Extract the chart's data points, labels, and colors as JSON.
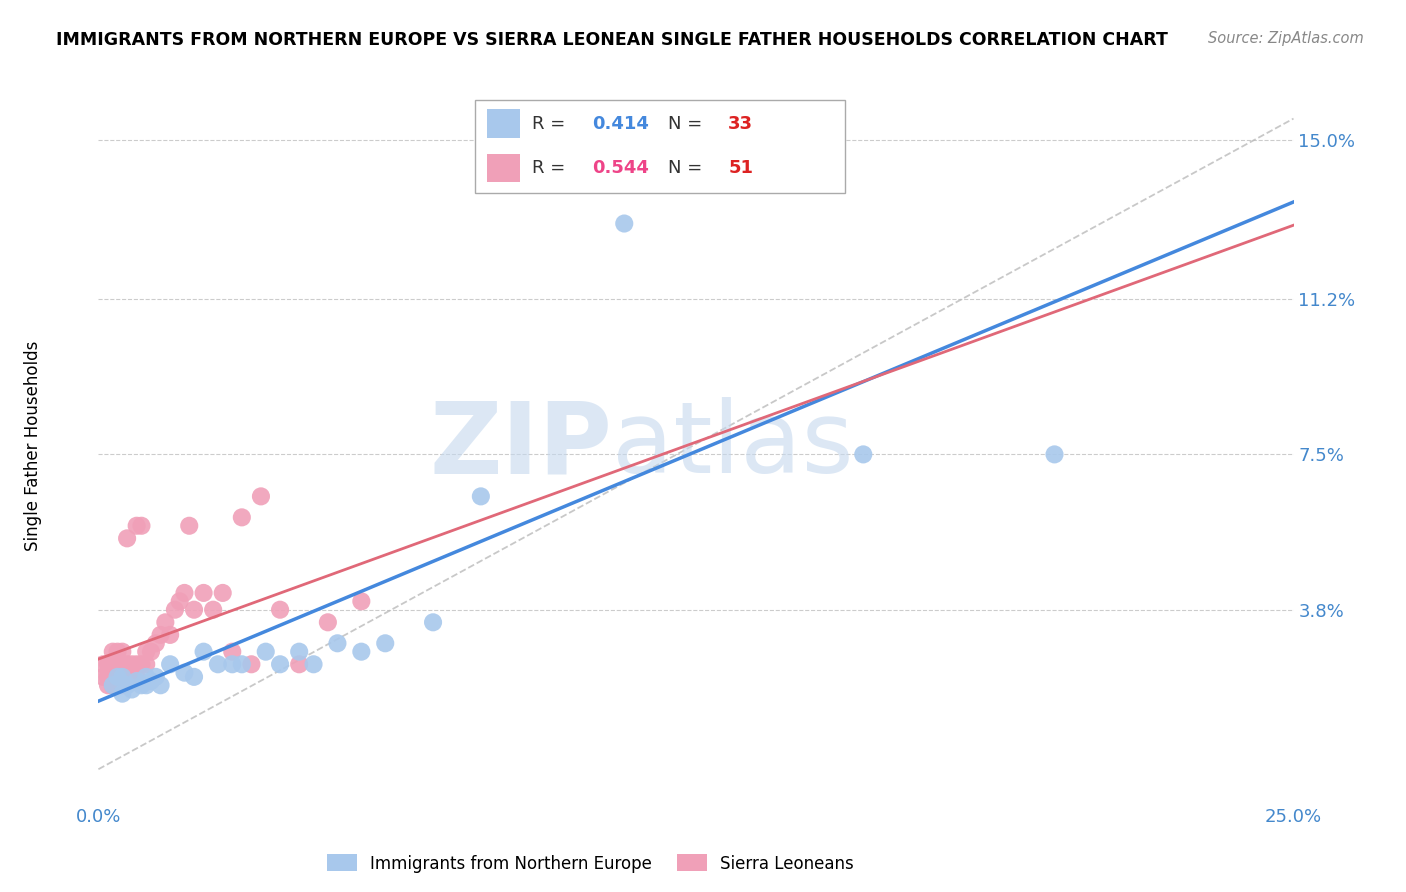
{
  "title": "IMMIGRANTS FROM NORTHERN EUROPE VS SIERRA LEONEAN SINGLE FATHER HOUSEHOLDS CORRELATION CHART",
  "source": "Source: ZipAtlas.com",
  "ylabel": "Single Father Households",
  "xlim": [
    0.0,
    0.25
  ],
  "ylim": [
    -0.008,
    0.162
  ],
  "y_ticks": [
    0.038,
    0.075,
    0.112,
    0.15
  ],
  "y_tick_labels": [
    "3.8%",
    "7.5%",
    "11.2%",
    "15.0%"
  ],
  "blue_color": "#A8C8EC",
  "pink_color": "#F0A0B8",
  "blue_line_color": "#4488DD",
  "pink_line_color": "#E06878",
  "blue_R": 0.414,
  "blue_N": 33,
  "pink_R": 0.544,
  "pink_N": 51,
  "legend_label_blue": "Immigrants from Northern Europe",
  "legend_label_pink": "Sierra Leoneans",
  "watermark_zip": "ZIP",
  "watermark_atlas": "atlas",
  "blue_scatter_x": [
    0.003,
    0.004,
    0.005,
    0.005,
    0.006,
    0.007,
    0.008,
    0.009,
    0.01,
    0.01,
    0.011,
    0.012,
    0.013,
    0.015,
    0.018,
    0.02,
    0.022,
    0.025,
    0.028,
    0.03,
    0.035,
    0.038,
    0.042,
    0.045,
    0.05,
    0.055,
    0.06,
    0.07,
    0.08,
    0.095,
    0.11,
    0.16,
    0.2
  ],
  "blue_scatter_y": [
    0.02,
    0.022,
    0.018,
    0.022,
    0.02,
    0.019,
    0.021,
    0.02,
    0.02,
    0.022,
    0.021,
    0.022,
    0.02,
    0.025,
    0.023,
    0.022,
    0.028,
    0.025,
    0.025,
    0.025,
    0.028,
    0.025,
    0.028,
    0.025,
    0.03,
    0.028,
    0.03,
    0.035,
    0.065,
    0.14,
    0.13,
    0.075,
    0.075
  ],
  "pink_scatter_x": [
    0.001,
    0.001,
    0.002,
    0.002,
    0.002,
    0.002,
    0.003,
    0.003,
    0.003,
    0.003,
    0.004,
    0.004,
    0.004,
    0.004,
    0.005,
    0.005,
    0.005,
    0.005,
    0.006,
    0.006,
    0.006,
    0.007,
    0.007,
    0.008,
    0.008,
    0.008,
    0.009,
    0.009,
    0.01,
    0.01,
    0.011,
    0.012,
    0.013,
    0.014,
    0.015,
    0.016,
    0.017,
    0.018,
    0.019,
    0.02,
    0.022,
    0.024,
    0.026,
    0.028,
    0.03,
    0.032,
    0.034,
    0.038,
    0.042,
    0.048,
    0.055
  ],
  "pink_scatter_y": [
    0.022,
    0.025,
    0.02,
    0.022,
    0.022,
    0.025,
    0.02,
    0.022,
    0.025,
    0.028,
    0.02,
    0.022,
    0.025,
    0.028,
    0.02,
    0.022,
    0.025,
    0.028,
    0.022,
    0.025,
    0.055,
    0.022,
    0.025,
    0.022,
    0.025,
    0.058,
    0.025,
    0.058,
    0.025,
    0.028,
    0.028,
    0.03,
    0.032,
    0.035,
    0.032,
    0.038,
    0.04,
    0.042,
    0.058,
    0.038,
    0.042,
    0.038,
    0.042,
    0.028,
    0.06,
    0.025,
    0.065,
    0.038,
    0.025,
    0.035,
    0.04
  ],
  "background_color": "#FFFFFF",
  "grid_color": "#CCCCCC"
}
